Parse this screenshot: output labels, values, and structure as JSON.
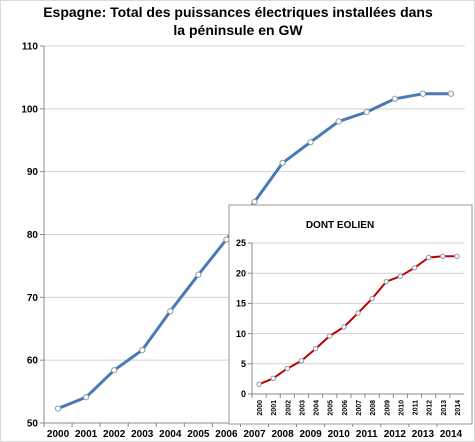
{
  "chart_data": [
    {
      "type": "line",
      "title": "Espagne: Total des puissances électriques installées dans la péninsule en GW",
      "title_lines": [
        "Espagne: Total des puissances électriques installées dans",
        "la péninsule en GW"
      ],
      "x": [
        "2000",
        "2001",
        "2002",
        "2003",
        "2004",
        "2005",
        "2006",
        "2007",
        "2008",
        "2009",
        "2010",
        "2011",
        "2012",
        "2013",
        "2014"
      ],
      "series": [
        {
          "values": [
            52.3,
            54.1,
            58.4,
            61.6,
            67.8,
            73.6,
            79.2,
            85.2,
            91.4,
            94.7,
            98.0,
            99.5,
            101.6,
            102.4,
            102.4
          ],
          "color": "#4a7ab5"
        }
      ],
      "yticks": [
        "50",
        "60",
        "70",
        "80",
        "90",
        "100",
        "110"
      ],
      "ylim": [
        50,
        110
      ],
      "xlabel": "",
      "ylabel": "",
      "grid": true
    },
    {
      "type": "line",
      "title": "DONT EOLIEN",
      "x": [
        "2000",
        "2001",
        "2002",
        "2003",
        "2004",
        "2005",
        "2006",
        "2007",
        "2008",
        "2009",
        "2010",
        "2011",
        "2012",
        "2013",
        "2014"
      ],
      "series": [
        {
          "values": [
            1.6,
            2.6,
            4.2,
            5.5,
            7.5,
            9.6,
            11.1,
            13.4,
            15.8,
            18.6,
            19.5,
            20.9,
            22.6,
            22.8,
            22.8
          ],
          "color": "#c00000"
        }
      ],
      "yticks": [
        "0",
        "5",
        "10",
        "15",
        "20",
        "25"
      ],
      "ylim": [
        0,
        25
      ],
      "xlabel": "",
      "ylabel": "",
      "grid": true
    }
  ]
}
